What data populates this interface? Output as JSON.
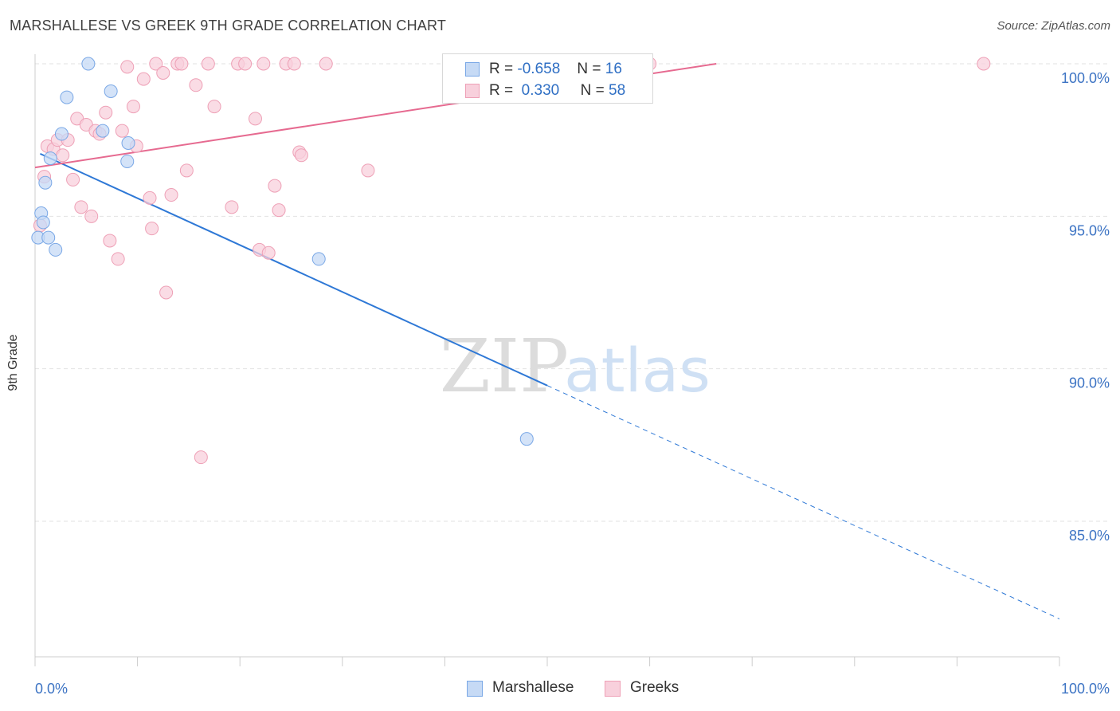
{
  "chart_data": {
    "type": "scatter",
    "title": "MARSHALLESE VS GREEK 9TH GRADE CORRELATION CHART",
    "source": "Source: ZipAtlas.com",
    "ylabel": "9th Grade",
    "xlabel": "",
    "x_tick_labels": [
      "0.0%",
      "100.0%"
    ],
    "y_tick_labels": [
      "100.0%",
      "95.0%",
      "90.0%",
      "85.0%"
    ],
    "y_ticks": [
      100,
      95,
      90,
      85
    ],
    "xlim": [
      0,
      100
    ],
    "ylim": [
      80.5,
      100.3
    ],
    "grid": true,
    "watermark": {
      "part1": "ZIP",
      "part2": "atlas"
    },
    "legend_stats": [
      {
        "r_label": "R =",
        "r_value": "-0.658",
        "n_label": "N =",
        "n_value": "16"
      },
      {
        "r_label": "R =",
        "r_value": "0.330",
        "n_label": "N =",
        "n_value": "58"
      }
    ],
    "series": [
      {
        "name": "Marshallese",
        "color": "#7aa8e6",
        "fill": "#c6daf5",
        "line_color": "#2e78d6",
        "trend": {
          "x0": 0.5,
          "y0": 97.05,
          "x1": 50.0,
          "y1": 89.45,
          "dashed_to_x": 100.0,
          "dashed_to_y": 81.8
        },
        "points": [
          [
            0.3,
            94.3
          ],
          [
            0.6,
            95.1
          ],
          [
            0.8,
            94.8
          ],
          [
            1.0,
            96.1
          ],
          [
            1.3,
            94.3
          ],
          [
            1.5,
            96.9
          ],
          [
            2.0,
            93.9
          ],
          [
            2.6,
            97.7
          ],
          [
            3.1,
            98.9
          ],
          [
            5.2,
            100.0
          ],
          [
            6.6,
            97.8
          ],
          [
            7.4,
            99.1
          ],
          [
            9.0,
            96.8
          ],
          [
            9.1,
            97.4
          ],
          [
            27.7,
            93.6
          ],
          [
            48.0,
            87.7
          ]
        ]
      },
      {
        "name": "Greeks",
        "color": "#eea0b6",
        "fill": "#f8d0dc",
        "line_color": "#e66a90",
        "trend": {
          "x0": 0.0,
          "y0": 96.6,
          "x1": 66.5,
          "y1": 100.0
        },
        "points": [
          [
            0.5,
            94.7
          ],
          [
            0.9,
            96.3
          ],
          [
            1.2,
            97.3
          ],
          [
            1.8,
            97.2
          ],
          [
            2.2,
            97.5
          ],
          [
            2.7,
            97.0
          ],
          [
            3.2,
            97.5
          ],
          [
            3.7,
            96.2
          ],
          [
            4.1,
            98.2
          ],
          [
            4.5,
            95.3
          ],
          [
            5.0,
            98.0
          ],
          [
            5.5,
            95.0
          ],
          [
            5.9,
            97.8
          ],
          [
            6.3,
            97.7
          ],
          [
            6.9,
            98.4
          ],
          [
            7.3,
            94.2
          ],
          [
            8.1,
            93.6
          ],
          [
            8.5,
            97.8
          ],
          [
            9.0,
            99.9
          ],
          [
            9.6,
            98.6
          ],
          [
            9.9,
            97.3
          ],
          [
            10.6,
            99.5
          ],
          [
            11.2,
            95.6
          ],
          [
            11.4,
            94.6
          ],
          [
            11.8,
            100.0
          ],
          [
            12.5,
            99.7
          ],
          [
            12.8,
            92.5
          ],
          [
            13.3,
            95.7
          ],
          [
            13.9,
            100.0
          ],
          [
            14.3,
            100.0
          ],
          [
            14.8,
            96.5
          ],
          [
            15.7,
            99.3
          ],
          [
            16.2,
            87.1
          ],
          [
            16.9,
            100.0
          ],
          [
            17.5,
            98.6
          ],
          [
            19.2,
            95.3
          ],
          [
            19.8,
            100.0
          ],
          [
            20.5,
            100.0
          ],
          [
            21.5,
            98.2
          ],
          [
            21.9,
            93.9
          ],
          [
            22.3,
            100.0
          ],
          [
            22.8,
            93.8
          ],
          [
            23.4,
            96.0
          ],
          [
            23.8,
            95.2
          ],
          [
            24.5,
            100.0
          ],
          [
            25.3,
            100.0
          ],
          [
            25.8,
            97.1
          ],
          [
            26.0,
            97.0
          ],
          [
            28.4,
            100.0
          ],
          [
            32.5,
            96.5
          ],
          [
            40.5,
            100.0
          ],
          [
            41.0,
            100.0
          ],
          [
            56.0,
            100.0
          ],
          [
            56.5,
            100.0
          ],
          [
            57.0,
            100.0
          ],
          [
            58.5,
            100.0
          ],
          [
            60.0,
            100.0
          ],
          [
            92.6,
            100.0
          ]
        ]
      }
    ]
  }
}
